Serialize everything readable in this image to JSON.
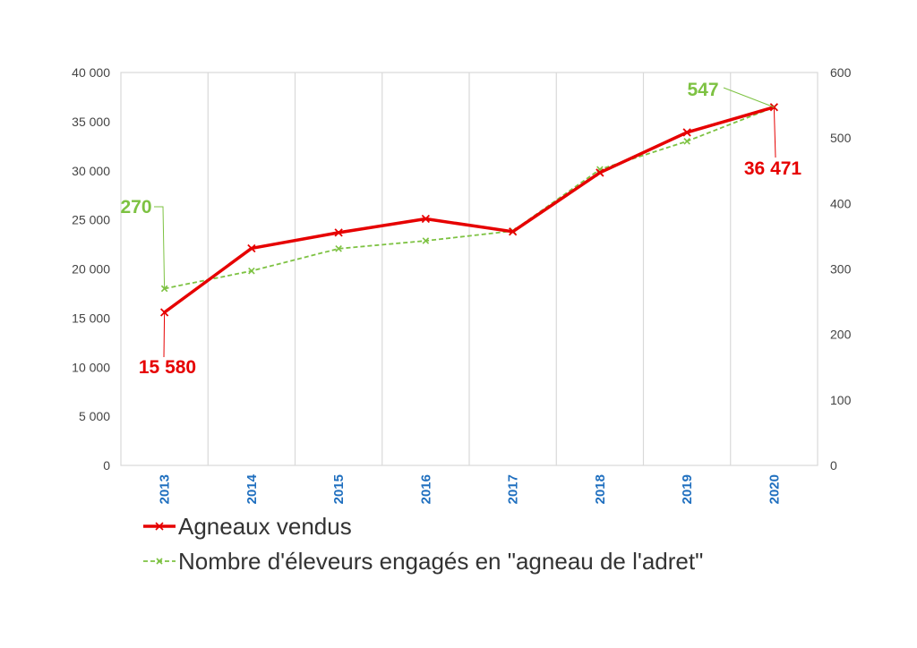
{
  "chart_data": {
    "type": "line",
    "x": [
      "2013",
      "2014",
      "2015",
      "2016",
      "2017",
      "2018",
      "2019",
      "2020"
    ],
    "left_axis": {
      "range": [
        0,
        40000
      ],
      "ticks": [
        0,
        5000,
        10000,
        15000,
        20000,
        25000,
        30000,
        35000,
        40000
      ],
      "tick_labels": [
        "0",
        "5 000",
        "10 000",
        "15 000",
        "20 000",
        "25 000",
        "30 000",
        "35 000",
        "40 000"
      ]
    },
    "right_axis": {
      "range": [
        0,
        600
      ],
      "ticks": [
        0,
        100,
        200,
        300,
        400,
        500,
        600
      ],
      "tick_labels": [
        "0",
        "100",
        "200",
        "300",
        "400",
        "500",
        "600"
      ]
    },
    "grid": "vertical",
    "legend_position": "bottom",
    "series": [
      {
        "name": "Agneaux vendus",
        "axis": "left",
        "color": "#e60000",
        "style": "solid",
        "marker": "x",
        "values": [
          15580,
          22100,
          23700,
          25100,
          23800,
          29800,
          33900,
          36471
        ]
      },
      {
        "name": "Nombre d'éleveurs engagés en \"agneau de l'adret\"",
        "axis": "right",
        "color": "#7dc242",
        "style": "dashed",
        "marker": "x",
        "values": [
          270,
          297,
          331,
          343,
          358,
          452,
          495,
          547
        ]
      }
    ],
    "annotations": [
      {
        "text": "15 580",
        "series": 0,
        "index": 0,
        "color": "#e60000"
      },
      {
        "text": "36 471",
        "series": 0,
        "index": 7,
        "color": "#e60000"
      },
      {
        "text": "270",
        "series": 1,
        "index": 0,
        "color": "#7dc242"
      },
      {
        "text": "547",
        "series": 1,
        "index": 7,
        "color": "#7dc242"
      }
    ]
  }
}
